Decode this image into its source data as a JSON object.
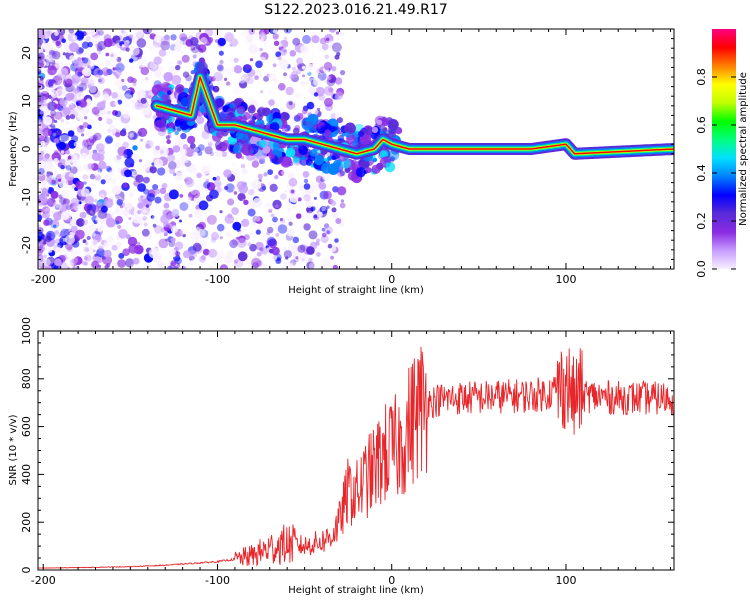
{
  "figure": {
    "title": "S122.2023.016.21.49.R17"
  },
  "chart_data": [
    {
      "type": "heatmap",
      "xlabel": "Height of straight line (km)",
      "ylabel": "Frequency (Hz)",
      "xlim": [
        -203,
        162
      ],
      "ylim": [
        -25,
        25
      ],
      "xticks": [
        -200,
        -100,
        0,
        100
      ],
      "yticks": [
        -20,
        -10,
        0,
        10,
        20
      ],
      "colorbar": {
        "label": "Normalized spectral amplitude",
        "range": [
          0,
          1
        ],
        "ticks": [
          0.0,
          0.2,
          0.4,
          0.6,
          0.8
        ],
        "colormap": [
          "#f8f0ff",
          "#c79cff",
          "#8a2be2",
          "#5a2bd8",
          "#0000ff",
          "#0080ff",
          "#00e0ff",
          "#00ff80",
          "#00ff00",
          "#c0ff00",
          "#ffff00",
          "#ff8000",
          "#ff0000",
          "#ff0080"
        ]
      },
      "ridge": {
        "x": [
          -135,
          -125,
          -115,
          -110,
          -100,
          -90,
          -80,
          -70,
          -60,
          -50,
          -40,
          -30,
          -20,
          -10,
          -5,
          0,
          10,
          40,
          80,
          100,
          105,
          162
        ],
        "y": [
          9,
          8,
          7,
          15,
          5,
          5,
          4,
          3,
          2,
          2,
          1,
          0,
          -1,
          0,
          2,
          1,
          0,
          0,
          0,
          1,
          -1,
          0
        ]
      }
    },
    {
      "type": "line",
      "xlabel": "Height of straight line (km)",
      "ylabel": "SNR (10 * v/v)",
      "xlim": [
        -203,
        162
      ],
      "ylim": [
        0,
        1000
      ],
      "xticks": [
        -200,
        -100,
        0,
        100
      ],
      "yticks": [
        0,
        200,
        400,
        600,
        800,
        1000
      ],
      "series": [
        {
          "color": "#e8262a",
          "x": [
            -203,
            -180,
            -150,
            -130,
            -120,
            -110,
            -100,
            -90,
            -80,
            -70,
            -60,
            -50,
            -40,
            -35,
            -30,
            -25,
            -20,
            -15,
            -10,
            -5,
            0,
            5,
            10,
            15,
            20,
            25,
            30,
            40,
            50,
            60,
            70,
            80,
            90,
            95,
            100,
            103,
            105,
            107,
            110,
            120,
            130,
            140,
            150,
            162
          ],
          "y": [
            8,
            10,
            14,
            20,
            25,
            30,
            35,
            45,
            60,
            90,
            110,
            100,
            120,
            140,
            200,
            330,
            320,
            380,
            420,
            480,
            500,
            520,
            600,
            670,
            700,
            710,
            715,
            720,
            722,
            725,
            728,
            730,
            740,
            760,
            780,
            750,
            700,
            760,
            730,
            725,
            720,
            720,
            718,
            720
          ]
        }
      ]
    }
  ]
}
